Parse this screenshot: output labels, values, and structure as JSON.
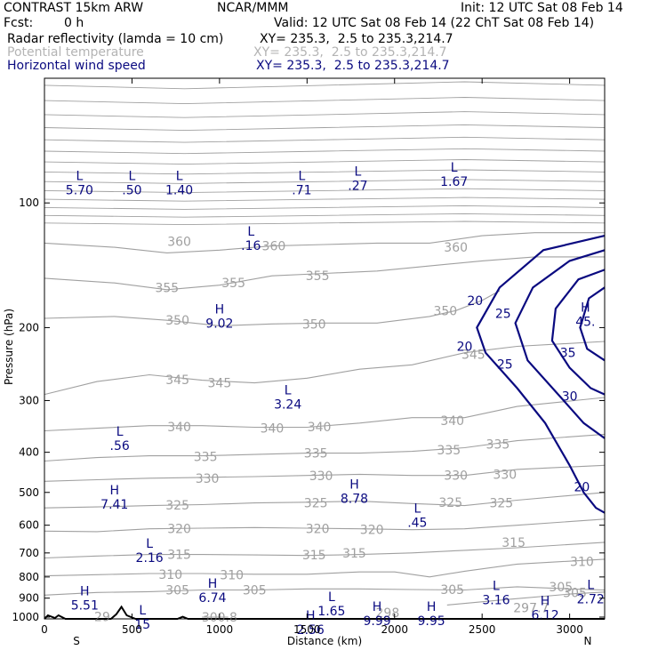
{
  "header": {
    "model": "CONTRAST 15km ARW",
    "center": "NCAR/MMM",
    "init": "Init: 12 UTC Sat 08 Feb 14",
    "fcst_label": "Fcst:",
    "fcst_value": "0 h",
    "valid": "Valid: 12 UTC Sat 08 Feb 14 (22 ChT Sat 08 Feb 14)",
    "fields": [
      {
        "name": "Radar reflectivity (lamda = 10 cm)",
        "xy": "XY= 235.3,  2.5 to 235.3,214.7"
      },
      {
        "name": "Potential temperature",
        "xy": "XY= 235.3,  2.5 to 235.3,214.7"
      },
      {
        "name": "Horizontal wind speed",
        "xy": "XY= 235.3,  2.5 to 235.3,214.7"
      }
    ]
  },
  "colors": {
    "theta": "#a0a0a0",
    "wind": "#0a0a80",
    "reflectivity": "#000000",
    "terrain": "#000000"
  },
  "chart_data": {
    "type": "contour",
    "xlabel": "Distance (km)",
    "ylabel": "Pressure (hPa)",
    "xlim": [
      0,
      3200
    ],
    "ylim": [
      1010,
      50
    ],
    "y_scale": "log",
    "x_ticks": [
      0,
      500,
      1000,
      1500,
      2000,
      2500,
      3000
    ],
    "y_ticks": [
      100,
      200,
      300,
      400,
      500,
      600,
      700,
      800,
      900,
      1000
    ],
    "x_end_labels": {
      "left": "S",
      "right": "N"
    },
    "theta_contours": [
      {
        "label": "360",
        "points": [
          [
            0,
            125
          ],
          [
            400,
            128
          ],
          [
            700,
            132
          ],
          [
            1000,
            130
          ],
          [
            1300,
            127
          ],
          [
            1600,
            126
          ],
          [
            1900,
            125
          ],
          [
            2200,
            125
          ],
          [
            2500,
            120
          ],
          [
            2800,
            118
          ],
          [
            3200,
            118
          ]
        ]
      },
      {
        "label": "355",
        "points": [
          [
            0,
            152
          ],
          [
            400,
            156
          ],
          [
            700,
            162
          ],
          [
            1000,
            158
          ],
          [
            1300,
            150
          ],
          [
            1600,
            148
          ],
          [
            1900,
            146
          ],
          [
            2200,
            142
          ],
          [
            2500,
            138
          ],
          [
            2800,
            135
          ],
          [
            3200,
            135
          ]
        ]
      },
      {
        "label": "350",
        "points": [
          [
            0,
            190
          ],
          [
            400,
            188
          ],
          [
            700,
            192
          ],
          [
            1000,
            198
          ],
          [
            1300,
            196
          ],
          [
            1600,
            195
          ],
          [
            1900,
            195
          ],
          [
            2200,
            188
          ],
          [
            2350,
            182
          ],
          [
            2500,
            172
          ],
          [
            2600,
            163
          ]
        ]
      },
      {
        "label": "345",
        "points": [
          [
            0,
            290
          ],
          [
            300,
            270
          ],
          [
            600,
            260
          ],
          [
            900,
            268
          ],
          [
            1200,
            272
          ],
          [
            1500,
            265
          ],
          [
            1800,
            252
          ],
          [
            2100,
            246
          ],
          [
            2400,
            230
          ],
          [
            2700,
            222
          ],
          [
            3200,
            216
          ]
        ]
      },
      {
        "label": "340",
        "points": [
          [
            0,
            355
          ],
          [
            300,
            350
          ],
          [
            600,
            345
          ],
          [
            900,
            345
          ],
          [
            1200,
            348
          ],
          [
            1500,
            348
          ],
          [
            1800,
            340
          ],
          [
            2100,
            330
          ],
          [
            2400,
            330
          ],
          [
            2700,
            310
          ],
          [
            3200,
            295
          ]
        ]
      },
      {
        "label": "335",
        "points": [
          [
            0,
            420
          ],
          [
            300,
            412
          ],
          [
            600,
            408
          ],
          [
            900,
            408
          ],
          [
            1200,
            405
          ],
          [
            1500,
            402
          ],
          [
            1800,
            402
          ],
          [
            2100,
            398
          ],
          [
            2400,
            390
          ],
          [
            2700,
            375
          ],
          [
            3200,
            362
          ]
        ]
      },
      {
        "label": "330",
        "points": [
          [
            0,
            470
          ],
          [
            300,
            466
          ],
          [
            600,
            462
          ],
          [
            900,
            460
          ],
          [
            1200,
            458
          ],
          [
            1500,
            455
          ],
          [
            1800,
            452
          ],
          [
            2100,
            455
          ],
          [
            2400,
            455
          ],
          [
            2700,
            440
          ],
          [
            3200,
            430
          ]
        ]
      },
      {
        "label": "325",
        "points": [
          [
            0,
            545
          ],
          [
            300,
            542
          ],
          [
            600,
            538
          ],
          [
            900,
            535
          ],
          [
            1200,
            530
          ],
          [
            1500,
            528
          ],
          [
            1800,
            525
          ],
          [
            2100,
            532
          ],
          [
            2400,
            538
          ],
          [
            2700,
            522
          ],
          [
            3200,
            500
          ]
        ]
      },
      {
        "label": "320",
        "points": [
          [
            0,
            620
          ],
          [
            300,
            622
          ],
          [
            600,
            612
          ],
          [
            900,
            610
          ],
          [
            1200,
            608
          ],
          [
            1500,
            610
          ],
          [
            1800,
            612
          ],
          [
            2100,
            615
          ],
          [
            2400,
            612
          ],
          [
            2700,
            600
          ],
          [
            3200,
            580
          ]
        ]
      },
      {
        "label": "315",
        "points": [
          [
            0,
            720
          ],
          [
            300,
            712
          ],
          [
            600,
            706
          ],
          [
            900,
            706
          ],
          [
            1200,
            708
          ],
          [
            1500,
            710
          ],
          [
            1800,
            706
          ],
          [
            2100,
            700
          ],
          [
            2400,
            690
          ],
          [
            2700,
            680
          ],
          [
            3200,
            660
          ]
        ]
      },
      {
        "label": "310",
        "points": [
          [
            0,
            795
          ],
          [
            300,
            790
          ],
          [
            600,
            785
          ],
          [
            900,
            785
          ],
          [
            1200,
            788
          ],
          [
            1500,
            788
          ],
          [
            1800,
            778
          ],
          [
            2000,
            778
          ],
          [
            2200,
            800
          ],
          [
            2400,
            775
          ],
          [
            2700,
            745
          ],
          [
            3200,
            725
          ]
        ]
      },
      {
        "label": "305",
        "points": [
          [
            0,
            885
          ],
          [
            300,
            872
          ],
          [
            600,
            868
          ],
          [
            900,
            860
          ],
          [
            1200,
            860
          ],
          [
            1500,
            855
          ],
          [
            1800,
            855
          ],
          [
            2100,
            858
          ],
          [
            2400,
            860
          ],
          [
            2700,
            845
          ],
          [
            3000,
            855
          ],
          [
            3200,
            860
          ]
        ]
      },
      {
        "label": "300.8",
        "points": [
          [
            900,
            1000
          ],
          [
            1050,
            1000
          ]
        ]
      },
      {
        "label": "297.7",
        "points": [
          [
            2300,
            935
          ],
          [
            2600,
            910
          ],
          [
            3000,
            880
          ],
          [
            3200,
            870
          ]
        ]
      }
    ],
    "theta_labels": [
      {
        "text": "360",
        "x": 770,
        "y": 124
      },
      {
        "text": "360",
        "x": 1310,
        "y": 127
      },
      {
        "text": "360",
        "x": 2350,
        "y": 128
      },
      {
        "text": "355",
        "x": 700,
        "y": 160
      },
      {
        "text": "355",
        "x": 1080,
        "y": 156
      },
      {
        "text": "355",
        "x": 1560,
        "y": 150
      },
      {
        "text": "350",
        "x": 760,
        "y": 192
      },
      {
        "text": "350",
        "x": 1540,
        "y": 196
      },
      {
        "text": "350",
        "x": 2290,
        "y": 182
      },
      {
        "text": "345",
        "x": 760,
        "y": 267
      },
      {
        "text": "345",
        "x": 1000,
        "y": 272
      },
      {
        "text": "345",
        "x": 2450,
        "y": 232
      },
      {
        "text": "340",
        "x": 770,
        "y": 347
      },
      {
        "text": "340",
        "x": 1300,
        "y": 350
      },
      {
        "text": "340",
        "x": 1570,
        "y": 347
      },
      {
        "text": "340",
        "x": 2330,
        "y": 335
      },
      {
        "text": "335",
        "x": 920,
        "y": 410
      },
      {
        "text": "335",
        "x": 1550,
        "y": 402
      },
      {
        "text": "335",
        "x": 2310,
        "y": 395
      },
      {
        "text": "335",
        "x": 2590,
        "y": 382
      },
      {
        "text": "330",
        "x": 930,
        "y": 462
      },
      {
        "text": "330",
        "x": 1580,
        "y": 456
      },
      {
        "text": "330",
        "x": 2350,
        "y": 455
      },
      {
        "text": "330",
        "x": 2630,
        "y": 452
      },
      {
        "text": "325",
        "x": 760,
        "y": 537
      },
      {
        "text": "325",
        "x": 1550,
        "y": 530
      },
      {
        "text": "325",
        "x": 2320,
        "y": 528
      },
      {
        "text": "325",
        "x": 2610,
        "y": 530
      },
      {
        "text": "320",
        "x": 770,
        "y": 612
      },
      {
        "text": "320",
        "x": 1560,
        "y": 612
      },
      {
        "text": "320",
        "x": 1870,
        "y": 615
      },
      {
        "text": "315",
        "x": 770,
        "y": 706
      },
      {
        "text": "315",
        "x": 1540,
        "y": 708
      },
      {
        "text": "315",
        "x": 1770,
        "y": 700
      },
      {
        "text": "315",
        "x": 2680,
        "y": 660
      },
      {
        "text": "310",
        "x": 720,
        "y": 788
      },
      {
        "text": "310",
        "x": 1070,
        "y": 790
      },
      {
        "text": "310",
        "x": 3070,
        "y": 735
      },
      {
        "text": "305",
        "x": 760,
        "y": 860
      },
      {
        "text": "305",
        "x": 1200,
        "y": 860
      },
      {
        "text": "305",
        "x": 2330,
        "y": 857
      },
      {
        "text": "305",
        "x": 2950,
        "y": 846
      },
      {
        "text": "305",
        "x": 3030,
        "y": 872
      },
      {
        "text": "297.7",
        "x": 2780,
        "y": 950
      },
      {
        "text": "300.8",
        "x": 1000,
        "y": 1000
      },
      {
        "text": "29",
        "x": 330,
        "y": 998
      },
      {
        "text": "298",
        "x": 1960,
        "y": 975
      }
    ],
    "wind_contours": [
      {
        "label": "20",
        "points": [
          [
            3200,
            120
          ],
          [
            2850,
            130
          ],
          [
            2600,
            160
          ],
          [
            2470,
            200
          ],
          [
            2520,
            230
          ],
          [
            2700,
            280
          ],
          [
            2860,
            340
          ],
          [
            3000,
            430
          ],
          [
            3080,
            500
          ],
          [
            3150,
            545
          ],
          [
            3200,
            560
          ]
        ]
      },
      {
        "label": "25",
        "points": [
          [
            3200,
            130
          ],
          [
            3000,
            138
          ],
          [
            2790,
            160
          ],
          [
            2690,
            195
          ],
          [
            2760,
            240
          ],
          [
            2950,
            295
          ],
          [
            3080,
            340
          ],
          [
            3200,
            370
          ]
        ]
      },
      {
        "label": "30",
        "points": [
          [
            3200,
            145
          ],
          [
            3050,
            153
          ],
          [
            2920,
            180
          ],
          [
            2900,
            215
          ],
          [
            3000,
            250
          ],
          [
            3120,
            280
          ],
          [
            3200,
            290
          ]
        ]
      },
      {
        "label": "35",
        "points": [
          [
            3200,
            160
          ],
          [
            3110,
            170
          ],
          [
            3060,
            200
          ],
          [
            3100,
            225
          ],
          [
            3200,
            240
          ]
        ]
      }
    ],
    "wind_labels": [
      {
        "text": "20",
        "x": 2460,
        "y": 172
      },
      {
        "text": "20",
        "x": 2400,
        "y": 222
      },
      {
        "text": "25",
        "x": 2620,
        "y": 185
      },
      {
        "text": "25",
        "x": 2630,
        "y": 245
      },
      {
        "text": "30",
        "x": 3000,
        "y": 293
      },
      {
        "text": "35",
        "x": 2990,
        "y": 230
      },
      {
        "text": "20",
        "x": 3070,
        "y": 485
      }
    ],
    "extrema": [
      {
        "type": "L",
        "value": "5.70",
        "x": 200,
        "y": 88
      },
      {
        "type": "L",
        "value": ".50",
        "x": 500,
        "y": 88
      },
      {
        "type": "L",
        "value": "1.40",
        "x": 770,
        "y": 88
      },
      {
        "type": "L",
        "value": ".16",
        "x": 1180,
        "y": 120
      },
      {
        "type": "L",
        "value": ".71",
        "x": 1470,
        "y": 88
      },
      {
        "type": "L",
        "value": ".27",
        "x": 1790,
        "y": 86
      },
      {
        "type": "L",
        "value": "1.67",
        "x": 2340,
        "y": 84
      },
      {
        "type": "H",
        "value": "9.02",
        "x": 1000,
        "y": 185
      },
      {
        "type": "H",
        "value": "45.",
        "x": 3090,
        "y": 183
      },
      {
        "type": "L",
        "value": "3.24",
        "x": 1390,
        "y": 290
      },
      {
        "type": "L",
        "value": ".56",
        "x": 430,
        "y": 365
      },
      {
        "type": "H",
        "value": "7.41",
        "x": 400,
        "y": 505
      },
      {
        "type": "H",
        "value": "8.78",
        "x": 1770,
        "y": 490
      },
      {
        "type": "L",
        "value": ".45",
        "x": 2130,
        "y": 560
      },
      {
        "type": "L",
        "value": "2.16",
        "x": 600,
        "y": 680
      },
      {
        "type": "H",
        "value": "6.74",
        "x": 960,
        "y": 850
      },
      {
        "type": "H",
        "value": "5.51",
        "x": 230,
        "y": 885
      },
      {
        "type": "L",
        "value": "3.16",
        "x": 2580,
        "y": 860
      },
      {
        "type": "L",
        "value": "2.72",
        "x": 3120,
        "y": 855
      },
      {
        "type": "L",
        "value": "1.65",
        "x": 1640,
        "y": 915
      },
      {
        "type": "H",
        "value": "6.12",
        "x": 2860,
        "y": 935
      },
      {
        "type": "H",
        "value": "9.99",
        "x": 1900,
        "y": 965
      },
      {
        "type": "H",
        "value": "9.95",
        "x": 2210,
        "y": 965
      },
      {
        "type": "L",
        "value": "15",
        "x": 560,
        "y": 985
      },
      {
        "type": "H",
        "value": "2.56",
        "x": 1520,
        "y": 1015
      }
    ],
    "terrain": [
      [
        0,
        1010
      ],
      [
        20,
        990
      ],
      [
        60,
        1005
      ],
      [
        80,
        990
      ],
      [
        120,
        1010
      ],
      [
        380,
        1010
      ],
      [
        410,
        985
      ],
      [
        440,
        945
      ],
      [
        470,
        990
      ],
      [
        520,
        1010
      ],
      [
        760,
        1010
      ],
      [
        790,
        998
      ],
      [
        820,
        1010
      ],
      [
        3200,
        1010
      ]
    ]
  }
}
